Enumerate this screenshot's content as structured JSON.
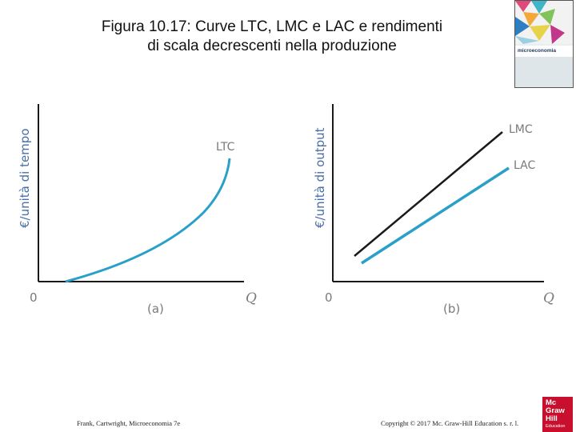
{
  "title": {
    "line1": "Figura 10.17: Curve LTC, LMC e LAC e rendimenti",
    "line2": "di scala decrescenti nella produzione"
  },
  "book_cover": {
    "label": "microeconomia"
  },
  "footer": {
    "left": "Frank, Cartwright, Microeconomia 7e",
    "right": "Copyright © 2017 Mc. Graw-Hill Education s. r. l.",
    "logo_lines": [
      "Mc",
      "Graw",
      "Hill"
    ],
    "logo_sub": "Education"
  },
  "colors": {
    "ltc": "#2aa0c8",
    "lmc": "#1a1a1a",
    "lac": "#2aa0c8",
    "axis": "#1a1a1a",
    "ylabel": "#4a6fa5"
  },
  "chart_data": [
    {
      "type": "line",
      "panel_label": "(a)",
      "ylabel": "€/unità di tempo",
      "xlabel": "Q",
      "origin_label": "0",
      "series": [
        {
          "name": "LTC",
          "shape": "convex, rising increasingly steeply"
        }
      ]
    },
    {
      "type": "line",
      "panel_label": "(b)",
      "ylabel": "€/unità di output",
      "xlabel": "Q",
      "origin_label": "0",
      "series": [
        {
          "name": "LMC",
          "shape": "upward sloping straight line, above LAC"
        },
        {
          "name": "LAC",
          "shape": "upward sloping straight line, below LMC"
        }
      ]
    }
  ]
}
